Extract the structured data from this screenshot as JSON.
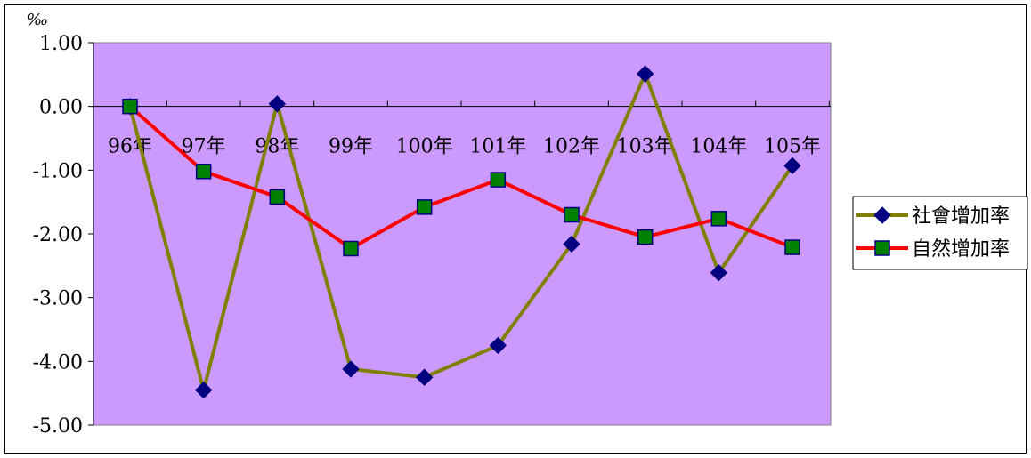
{
  "chart_data": {
    "type": "line",
    "title": "",
    "ylabel": "‰",
    "xlabel": "",
    "ylim": [
      -5,
      1
    ],
    "y_ticks": [
      1,
      0,
      -1,
      -2,
      -3,
      -4,
      -5
    ],
    "y_tick_labels": [
      "1.00",
      "0.00",
      "-1.00",
      "-2.00",
      "-3.00",
      "-4.00",
      "-5.00"
    ],
    "categories": [
      "96年",
      "97年",
      "98年",
      "99年",
      "100年",
      "101年",
      "102年",
      "103年",
      "104年",
      "105年"
    ],
    "series": [
      {
        "name": "社會增加率",
        "color": "#808000",
        "marker": "diamond",
        "marker_color": "#000080",
        "values": [
          0.0,
          -4.45,
          0.04,
          -4.12,
          -4.25,
          -3.75,
          -2.16,
          0.51,
          -2.61,
          -0.93
        ]
      },
      {
        "name": "自然增加率",
        "color": "#ff0000",
        "marker": "square",
        "marker_color": "#008000",
        "values": [
          0.0,
          -1.02,
          -1.42,
          -2.23,
          -1.58,
          -1.15,
          -1.7,
          -2.05,
          -1.76,
          -2.21
        ]
      }
    ],
    "plot_background": "#cc99ff",
    "grid": false,
    "legend_position": "right"
  }
}
